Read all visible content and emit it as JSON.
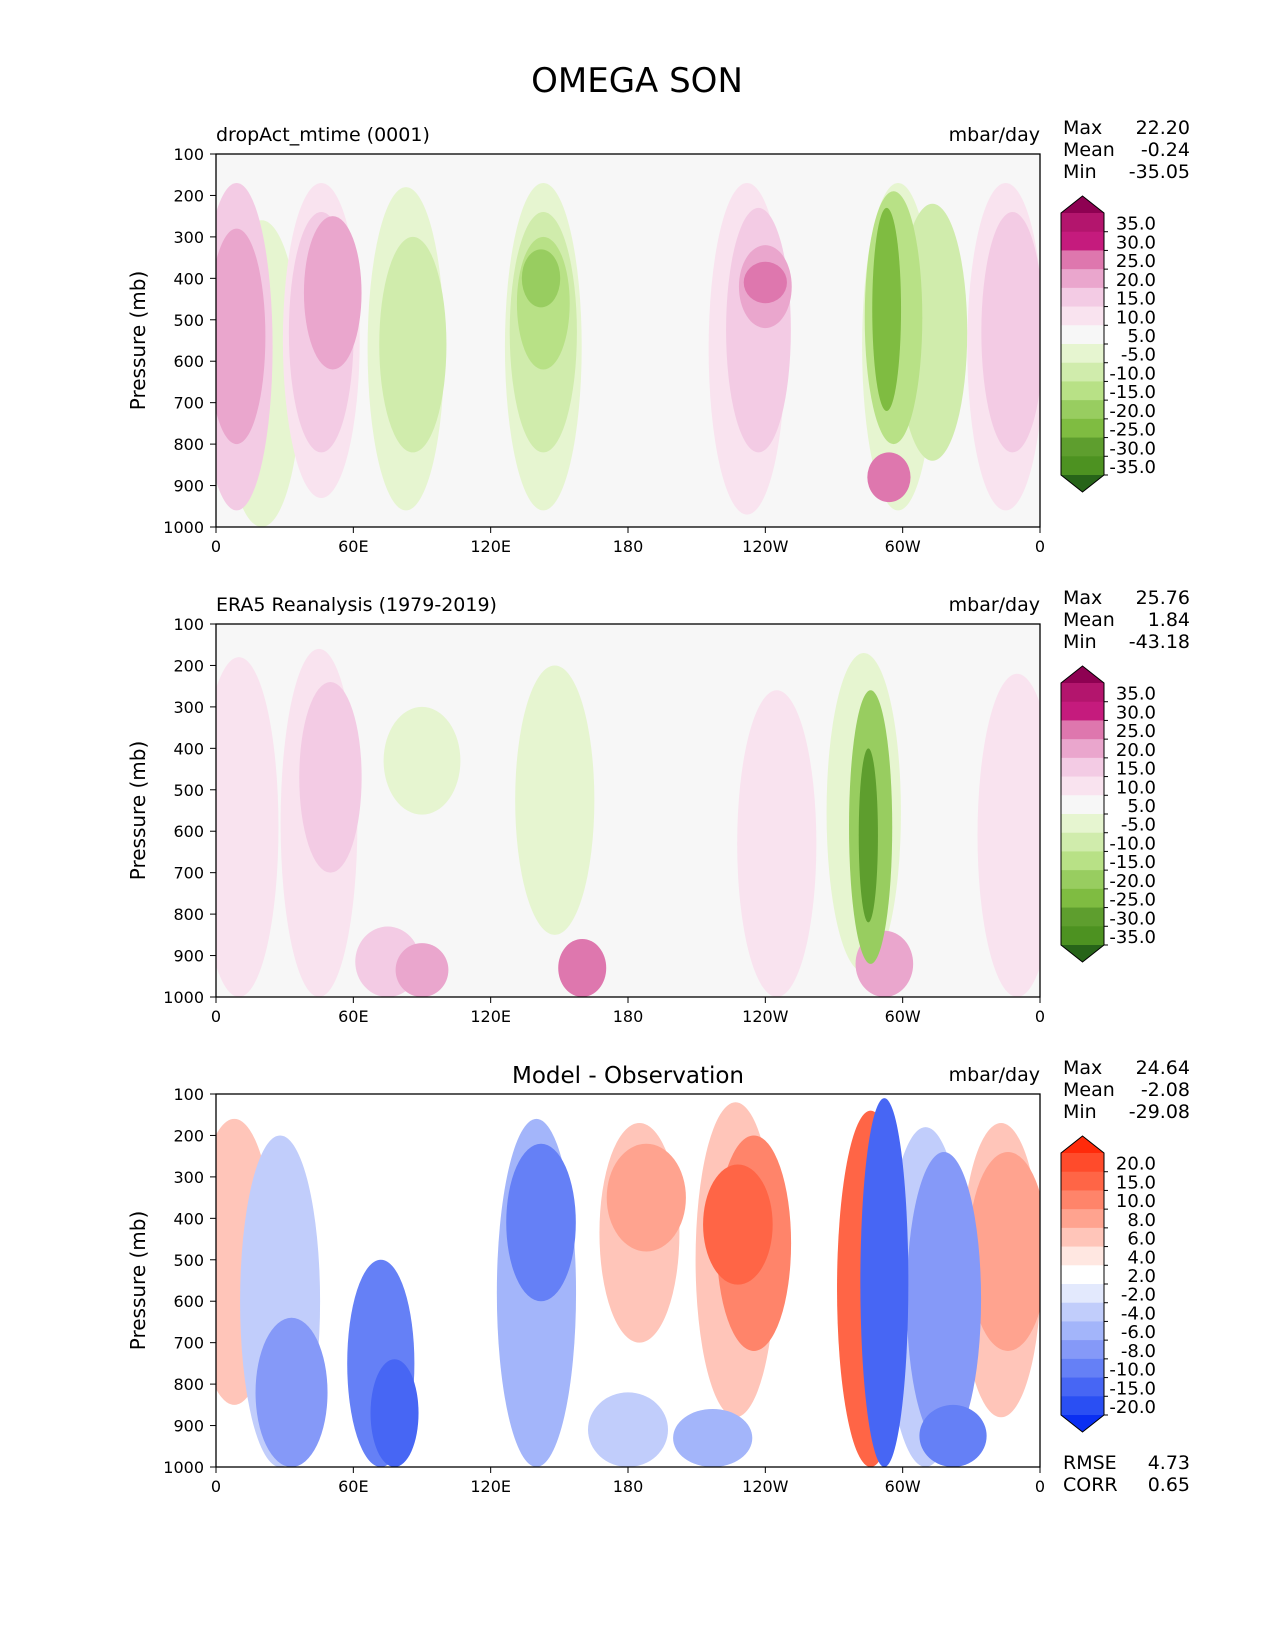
{
  "figure": {
    "title": "OMEGA SON"
  },
  "chart_data": [
    {
      "type": "heatmap",
      "title": "dropAct_mtime (0001)",
      "title_position": "left",
      "units": "mbar/day",
      "xlabel": "",
      "ylabel": "Pressure (mb)",
      "x_ticks": [
        "0",
        "60E",
        "120E",
        "180",
        "120W",
        "60W",
        "0"
      ],
      "y_ticks": [
        "100",
        "200",
        "300",
        "400",
        "500",
        "600",
        "700",
        "800",
        "900",
        "1000"
      ],
      "ylim": [
        100,
        1000
      ],
      "stats": [
        {
          "label": "Max",
          "value": "22.20"
        },
        {
          "label": "Mean",
          "value": "-0.24"
        },
        {
          "label": "Min",
          "value": "-35.05"
        }
      ],
      "colorbar": {
        "colors": [
          "#8e0152",
          "#b3156d",
          "#c51b7d",
          "#de77ae",
          "#eaa6cd",
          "#f3cbe4",
          "#f9e3ef",
          "#f7f7f7",
          "#e6f5d0",
          "#d0ecac",
          "#b8e186",
          "#98cd60",
          "#7fbc41",
          "#5e9e2e",
          "#4d9221",
          "#276419"
        ],
        "labels": [
          "35.0",
          "30.0",
          "25.0",
          "20.0",
          "15.0",
          "10.0",
          "5.0",
          "-5.0",
          "-10.0",
          "-15.0",
          "-20.0",
          "-25.0",
          "-30.0",
          "-35.0"
        ]
      },
      "regions": [
        {
          "lon": 9,
          "top": 170,
          "bottom": 960,
          "value": 10
        },
        {
          "lon": 9,
          "top": 280,
          "bottom": 800,
          "value": 16
        },
        {
          "lon": 46,
          "top": 170,
          "bottom": 930,
          "value": 8
        },
        {
          "lon": 46,
          "top": 240,
          "bottom": 820,
          "value": 13
        },
        {
          "lon": 51,
          "top": 250,
          "bottom": 620,
          "value": 16
        },
        {
          "lon": 20,
          "top": 260,
          "bottom": 1000,
          "value": -7
        },
        {
          "lon": 83,
          "top": 180,
          "bottom": 960,
          "value": -8
        },
        {
          "lon": 86,
          "top": 300,
          "bottom": 820,
          "value": -12
        },
        {
          "lon": 143,
          "top": 170,
          "bottom": 960,
          "value": -8
        },
        {
          "lon": 143,
          "top": 240,
          "bottom": 820,
          "value": -12
        },
        {
          "lon": 143,
          "top": 300,
          "bottom": 620,
          "value": -18
        },
        {
          "lon": 142,
          "top": 330,
          "bottom": 470,
          "value": -24
        },
        {
          "lon": 232,
          "top": 170,
          "bottom": 970,
          "value": 8
        },
        {
          "lon": 237,
          "top": 230,
          "bottom": 820,
          "value": 13
        },
        {
          "lon": 240,
          "top": 320,
          "bottom": 520,
          "value": 18
        },
        {
          "lon": 240,
          "top": 360,
          "bottom": 460,
          "value": 22
        },
        {
          "lon": 298,
          "top": 170,
          "bottom": 960,
          "value": -10
        },
        {
          "lon": 296,
          "top": 190,
          "bottom": 800,
          "value": -16
        },
        {
          "lon": 293,
          "top": 230,
          "bottom": 720,
          "value": -28
        },
        {
          "lon": 294,
          "top": 820,
          "bottom": 940,
          "value": 22
        },
        {
          "lon": 313,
          "top": 220,
          "bottom": 840,
          "value": -11
        },
        {
          "lon": 345,
          "top": 170,
          "bottom": 960,
          "value": 8
        },
        {
          "lon": 348,
          "top": 240,
          "bottom": 820,
          "value": 14
        }
      ]
    },
    {
      "type": "heatmap",
      "title": "ERA5 Reanalysis (1979-2019)",
      "title_position": "left",
      "units": "mbar/day",
      "xlabel": "",
      "ylabel": "Pressure (mb)",
      "x_ticks": [
        "0",
        "60E",
        "120E",
        "180",
        "120W",
        "60W",
        "0"
      ],
      "y_ticks": [
        "100",
        "200",
        "300",
        "400",
        "500",
        "600",
        "700",
        "800",
        "900",
        "1000"
      ],
      "ylim": [
        100,
        1000
      ],
      "stats": [
        {
          "label": "Max",
          "value": "25.76"
        },
        {
          "label": "Mean",
          "value": "1.84"
        },
        {
          "label": "Min",
          "value": "-43.18"
        }
      ],
      "colorbar": {
        "colors": [
          "#8e0152",
          "#b3156d",
          "#c51b7d",
          "#de77ae",
          "#eaa6cd",
          "#f3cbe4",
          "#f9e3ef",
          "#f7f7f7",
          "#e6f5d0",
          "#d0ecac",
          "#b8e186",
          "#98cd60",
          "#7fbc41",
          "#5e9e2e",
          "#4d9221",
          "#276419"
        ],
        "labels": [
          "35.0",
          "30.0",
          "25.0",
          "20.0",
          "15.0",
          "10.0",
          "5.0",
          "-5.0",
          "-10.0",
          "-15.0",
          "-20.0",
          "-25.0",
          "-30.0",
          "-35.0"
        ]
      },
      "regions": [
        {
          "lon": 10,
          "top": 180,
          "bottom": 1000,
          "value": 7
        },
        {
          "lon": 45,
          "top": 160,
          "bottom": 1000,
          "value": 8
        },
        {
          "lon": 50,
          "top": 240,
          "bottom": 700,
          "value": 14
        },
        {
          "lon": 90,
          "top": 300,
          "bottom": 560,
          "value": -8
        },
        {
          "lon": 148,
          "top": 200,
          "bottom": 850,
          "value": -7
        },
        {
          "lon": 245,
          "top": 260,
          "bottom": 1000,
          "value": 7
        },
        {
          "lon": 283,
          "top": 170,
          "bottom": 940,
          "value": -9
        },
        {
          "lon": 286,
          "top": 260,
          "bottom": 920,
          "value": -22
        },
        {
          "lon": 285,
          "top": 400,
          "bottom": 820,
          "value": -32
        },
        {
          "lon": 350,
          "top": 220,
          "bottom": 1000,
          "value": 7
        },
        {
          "lon": 75,
          "top": 830,
          "bottom": 1000,
          "value": 13
        },
        {
          "lon": 90,
          "top": 870,
          "bottom": 1000,
          "value": 18
        },
        {
          "lon": 160,
          "top": 860,
          "bottom": 1000,
          "value": 20
        },
        {
          "lon": 292,
          "top": 840,
          "bottom": 1000,
          "value": 16
        }
      ]
    },
    {
      "type": "heatmap",
      "title": "Model - Observation",
      "title_position": "center",
      "units": "mbar/day",
      "xlabel": "",
      "ylabel": "Pressure (mb)",
      "x_ticks": [
        "0",
        "60E",
        "120E",
        "180",
        "120W",
        "60W",
        "0"
      ],
      "y_ticks": [
        "100",
        "200",
        "300",
        "400",
        "500",
        "600",
        "700",
        "800",
        "900",
        "1000"
      ],
      "ylim": [
        100,
        1000
      ],
      "stats": [
        {
          "label": "Max",
          "value": "24.64"
        },
        {
          "label": "Mean",
          "value": "-2.08"
        },
        {
          "label": "Min",
          "value": "-29.08"
        }
      ],
      "extra_stats": [
        {
          "label": "RMSE",
          "value": "4.73"
        },
        {
          "label": "CORR",
          "value": "0.65"
        }
      ],
      "colorbar": {
        "colors": [
          "#ff2a0a",
          "#ff4b2b",
          "#ff6546",
          "#ff846a",
          "#ffa38f",
          "#ffc5b9",
          "#ffe7e1",
          "#ffffff",
          "#e3e9fd",
          "#c1cdfb",
          "#a3b5fa",
          "#8599f8",
          "#6580f6",
          "#4766f4",
          "#2a4ff3",
          "#0a2ff2"
        ],
        "labels": [
          "20.0",
          "15.0",
          "10.0",
          "8.0",
          "6.0",
          "4.0",
          "2.0",
          "-2.0",
          "-4.0",
          "-6.0",
          "-8.0",
          "-10.0",
          "-15.0",
          "-20.0"
        ]
      },
      "regions": [
        {
          "lon": 8,
          "top": 160,
          "bottom": 850,
          "value": 5
        },
        {
          "lon": 28,
          "top": 200,
          "bottom": 1000,
          "value": -5
        },
        {
          "lon": 33,
          "top": 640,
          "bottom": 1000,
          "value": -10
        },
        {
          "lon": 72,
          "top": 500,
          "bottom": 1000,
          "value": -12
        },
        {
          "lon": 78,
          "top": 740,
          "bottom": 1000,
          "value": -20
        },
        {
          "lon": 140,
          "top": 160,
          "bottom": 1000,
          "value": -7
        },
        {
          "lon": 142,
          "top": 220,
          "bottom": 600,
          "value": -11
        },
        {
          "lon": 185,
          "top": 170,
          "bottom": 700,
          "value": 4
        },
        {
          "lon": 188,
          "top": 220,
          "bottom": 480,
          "value": 7
        },
        {
          "lon": 227,
          "top": 120,
          "bottom": 880,
          "value": 5
        },
        {
          "lon": 235,
          "top": 200,
          "bottom": 720,
          "value": 9
        },
        {
          "lon": 228,
          "top": 270,
          "bottom": 560,
          "value": 11
        },
        {
          "lon": 180,
          "top": 820,
          "bottom": 1000,
          "value": -5
        },
        {
          "lon": 217,
          "top": 860,
          "bottom": 1000,
          "value": -7
        },
        {
          "lon": 286,
          "top": 140,
          "bottom": 1000,
          "value": 12
        },
        {
          "lon": 292,
          "top": 110,
          "bottom": 1000,
          "value": -20
        },
        {
          "lon": 310,
          "top": 180,
          "bottom": 1000,
          "value": -5
        },
        {
          "lon": 318,
          "top": 240,
          "bottom": 950,
          "value": -9
        },
        {
          "lon": 343,
          "top": 170,
          "bottom": 880,
          "value": 5
        },
        {
          "lon": 346,
          "top": 240,
          "bottom": 720,
          "value": 7
        },
        {
          "lon": 322,
          "top": 850,
          "bottom": 1000,
          "value": -12
        }
      ]
    }
  ]
}
